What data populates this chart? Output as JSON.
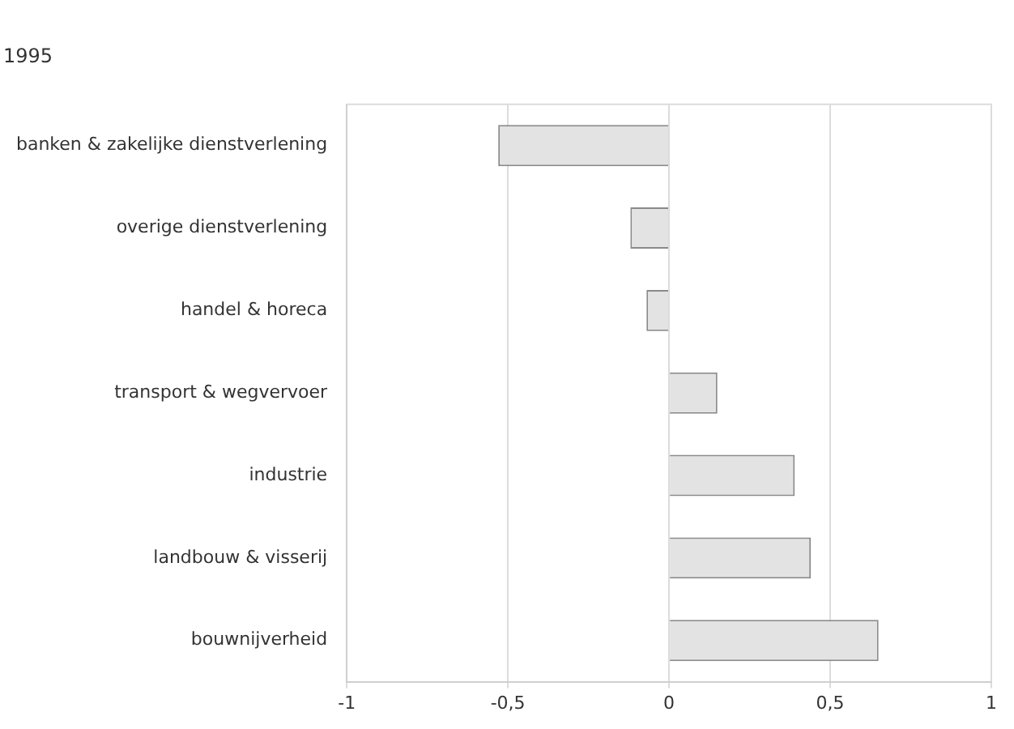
{
  "chart_data": {
    "type": "bar",
    "orientation": "horizontal",
    "title": "1995",
    "categories": [
      "banken & zakelijke dienstverlening",
      "overige dienstverlening",
      "handel & horeca",
      "transport & wegvervoer",
      "industrie",
      "landbouw & visserij",
      "bouwnijverheid"
    ],
    "values": [
      -0.53,
      -0.12,
      -0.07,
      0.15,
      0.39,
      0.44,
      0.65
    ],
    "color": "#e3e3e3",
    "xlim": [
      -1,
      1
    ],
    "xticks": [
      {
        "value": -1,
        "label": "-1"
      },
      {
        "value": -0.5,
        "label": "-0,5"
      },
      {
        "value": 0,
        "label": "0"
      },
      {
        "value": 0.5,
        "label": "0,5"
      },
      {
        "value": 1,
        "label": "1"
      }
    ],
    "grid": "x"
  }
}
